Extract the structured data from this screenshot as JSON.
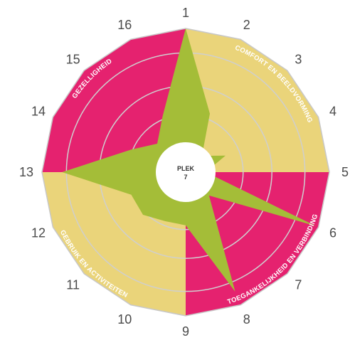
{
  "chart_data": {
    "type": "radar",
    "axes": [
      "1",
      "2",
      "3",
      "4",
      "5",
      "6",
      "7",
      "8",
      "9",
      "10",
      "11",
      "12",
      "13",
      "14",
      "15",
      "16"
    ],
    "values": [
      1.0,
      0.44,
      0.16,
      0.3,
      0.14,
      0.98,
      0.23,
      0.9,
      0.37,
      0.37,
      0.42,
      0.41,
      0.86,
      0.41,
      0.28,
      0.42
    ],
    "range": [
      0,
      1
    ],
    "rings": 4,
    "center_label": [
      "PLEK",
      "7"
    ],
    "sectors": [
      {
        "name": "COMFORT EN BEELDVORMING",
        "from_axis": 1,
        "to_axis": 5,
        "color": "#ead47a"
      },
      {
        "name": "TOEGANKELIJKHEID EN VERBINDING",
        "from_axis": 5,
        "to_axis": 9,
        "color": "#e5226f"
      },
      {
        "name": "GEBRUIK EN ACTIVITEITEN",
        "from_axis": 9,
        "to_axis": 13,
        "color": "#ead47a"
      },
      {
        "name": "GEZELLIGHEID",
        "from_axis": 13,
        "to_axis": 1,
        "color": "#e5226f"
      }
    ],
    "colors": {
      "data_fill": "#a4bd38",
      "ring_stroke": "#cfcfcf",
      "outline": "#c8c8c8",
      "center_fill": "#ffffff"
    }
  }
}
